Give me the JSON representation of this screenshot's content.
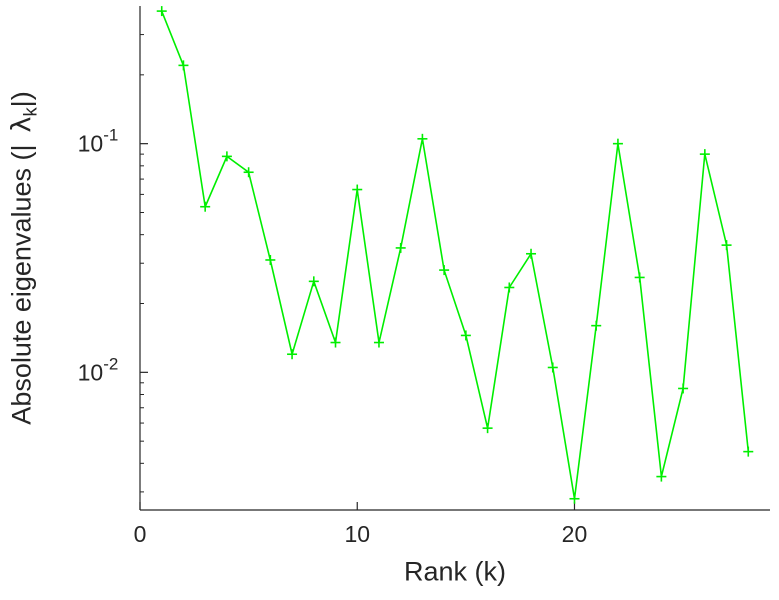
{
  "figure": {
    "background": "#ffffff",
    "axis_color": "#262626"
  },
  "chart_data": {
    "type": "line",
    "title": "",
    "xlabel": "Rank (k)",
    "ylabel": {
      "pre": "Absolute eigenvalues (|",
      "symbol": "λ",
      "subscript": "k",
      "post": "|)"
    },
    "y_scale": "log",
    "grid": false,
    "legend": null,
    "line_color": "#00ee00",
    "marker": "plus",
    "xlim": [
      0,
      29
    ],
    "ylim": [
      0.0025,
      0.4
    ],
    "x_ticks": [
      {
        "value": 0,
        "label": "0"
      },
      {
        "value": 10,
        "label": "10"
      },
      {
        "value": 20,
        "label": "20"
      }
    ],
    "y_ticks": [
      {
        "value": 0.1,
        "base": "10",
        "exponent": "-1"
      },
      {
        "value": 0.01,
        "base": "10",
        "exponent": "-2"
      }
    ],
    "x": [
      1,
      2,
      3,
      4,
      5,
      6,
      7,
      8,
      9,
      10,
      11,
      12,
      13,
      14,
      15,
      16,
      17,
      18,
      19,
      20,
      21,
      22,
      23,
      24,
      25,
      26,
      27,
      28
    ],
    "values": [
      0.38,
      0.22,
      0.053,
      0.088,
      0.075,
      0.031,
      0.012,
      0.025,
      0.0135,
      0.063,
      0.0135,
      0.035,
      0.105,
      0.028,
      0.0145,
      0.0057,
      0.0235,
      0.033,
      0.0105,
      0.0028,
      0.016,
      0.1,
      0.026,
      0.0035,
      0.0085,
      0.09,
      0.036,
      0.0045
    ]
  }
}
